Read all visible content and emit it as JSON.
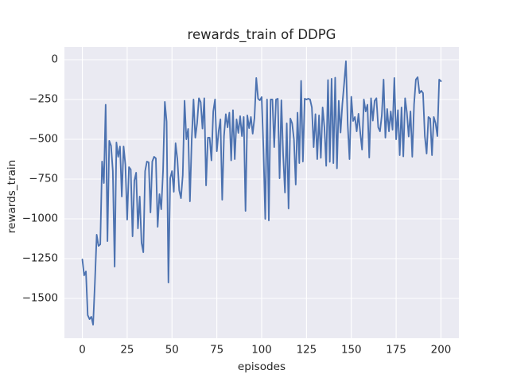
{
  "colors": {
    "figure_background": "#ffffff",
    "axes_background": "#eaeaf2",
    "grid": "#ffffff",
    "line": "#4c72b0",
    "text": "#262626"
  },
  "chart_data": {
    "type": "line",
    "title": "rewards_train of DDPG",
    "xlabel": "episodes",
    "ylabel": "rewards_train",
    "grid": true,
    "legend_position": "none",
    "xlim": [
      -10,
      210
    ],
    "ylim": [
      -1750,
      80
    ],
    "x_ticks": [
      0,
      25,
      50,
      75,
      100,
      125,
      150,
      175,
      200
    ],
    "x_tick_labels": [
      "0",
      "25",
      "50",
      "75",
      "100",
      "125",
      "150",
      "175",
      "200"
    ],
    "y_ticks": [
      0,
      -250,
      -500,
      -750,
      -1000,
      -1250,
      -1500
    ],
    "y_tick_labels": [
      "0",
      "−250",
      "−500",
      "−750",
      "−1000",
      "−1250",
      "−1500"
    ],
    "series": [
      {
        "name": "rewards_train",
        "color": "#4c72b0",
        "x_start": 0,
        "x_step": 1,
        "values": [
          -1255,
          -1355,
          -1330,
          -1605,
          -1630,
          -1615,
          -1665,
          -1400,
          -1100,
          -1170,
          -1160,
          -640,
          -775,
          -283,
          -1140,
          -510,
          -540,
          -700,
          -1300,
          -520,
          -610,
          -545,
          -860,
          -545,
          -660,
          -1005,
          -675,
          -690,
          -1110,
          -760,
          -710,
          -1060,
          -860,
          -1150,
          -1210,
          -700,
          -640,
          -645,
          -960,
          -640,
          -610,
          -620,
          -1050,
          -845,
          -940,
          -700,
          -265,
          -390,
          -1400,
          -745,
          -700,
          -830,
          -525,
          -625,
          -820,
          -870,
          -725,
          -258,
          -500,
          -435,
          -890,
          -500,
          -250,
          -490,
          -400,
          -242,
          -267,
          -433,
          -242,
          -790,
          -490,
          -490,
          -633,
          -325,
          -250,
          -575,
          -450,
          -375,
          -880,
          -480,
          -342,
          -425,
          -333,
          -633,
          -317,
          -625,
          -375,
          -460,
          -355,
          -480,
          -360,
          -950,
          -350,
          -430,
          -360,
          -465,
          -365,
          -115,
          -245,
          -255,
          -235,
          -560,
          -1000,
          -250,
          -1010,
          -250,
          -250,
          -550,
          -250,
          -245,
          -745,
          -255,
          -600,
          -835,
          -400,
          -935,
          -370,
          -400,
          -500,
          -785,
          -333,
          -650,
          -133,
          -640,
          -245,
          -250,
          -245,
          -250,
          -300,
          -550,
          -342,
          -625,
          -350,
          -617,
          -300,
          -425,
          -667,
          -128,
          -642,
          -120,
          -650,
          -113,
          -683,
          -258,
          -458,
          -280,
          -150,
          -10,
          -408,
          -625,
          -233,
          -385,
          -360,
          -450,
          -340,
          -460,
          -565,
          -250,
          -325,
          -283,
          -615,
          -242,
          -383,
          -258,
          -242,
          -425,
          -450,
          -350,
          -125,
          -490,
          -310,
          -450,
          -325,
          -440,
          -115,
          -500,
          -317,
          -600,
          -300,
          -608,
          -242,
          -333,
          -483,
          -325,
          -610,
          -280,
          -125,
          -110,
          -210,
          -195,
          -210,
          -480,
          -590,
          -360,
          -370,
          -600,
          -360,
          -400,
          -480,
          -125,
          -135
        ]
      }
    ]
  }
}
